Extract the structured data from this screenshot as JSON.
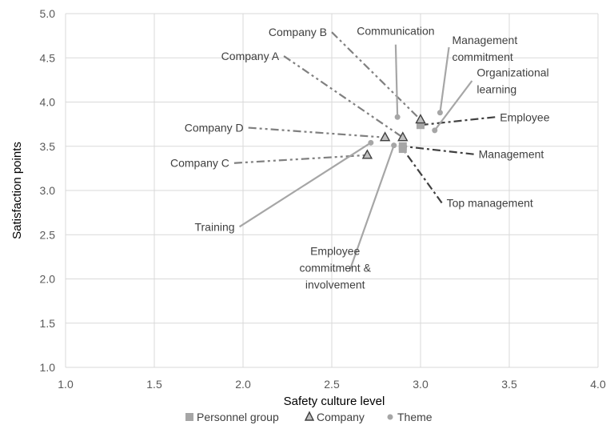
{
  "chart_data": {
    "type": "scatter",
    "title": "",
    "xlabel": "Safety culture level",
    "ylabel": "Satisfaction points",
    "xlim": [
      1.0,
      4.0
    ],
    "ylim": [
      1.0,
      5.0
    ],
    "xticks": [
      "1.0",
      "1.5",
      "2.0",
      "2.5",
      "3.0",
      "3.5",
      "4.0"
    ],
    "yticks": [
      "1.0",
      "1.5",
      "2.0",
      "2.5",
      "3.0",
      "3.5",
      "4.0",
      "4.5",
      "5.0"
    ],
    "grid": true,
    "legend_position": "bottom",
    "series": [
      {
        "name": "Personnel group",
        "marker": "square",
        "color": "#a6a6a6",
        "points": [
          {
            "label": "Employee",
            "x": 3.0,
            "y": 3.74,
            "label_x": 3.42,
            "label_y": 3.83,
            "line": "dash-dot",
            "line_color": "#404040",
            "label_anchor": "start"
          },
          {
            "label": "Management",
            "x": 2.9,
            "y": 3.5,
            "label_x": 3.3,
            "label_y": 3.41,
            "line": "dash-dot",
            "line_color": "#404040",
            "label_anchor": "start"
          },
          {
            "label": "Top management",
            "x": 2.9,
            "y": 3.47,
            "label_x": 3.12,
            "label_y": 2.86,
            "line": "dash-dot",
            "line_color": "#404040",
            "label_anchor": "start"
          }
        ]
      },
      {
        "name": "Company",
        "marker": "triangle",
        "color": "#404040",
        "points": [
          {
            "label": "Company A",
            "x": 2.9,
            "y": 3.6,
            "label_x": 2.23,
            "label_y": 4.52,
            "line": "dash-dot-dot",
            "line_color": "#808080",
            "label_anchor": "end"
          },
          {
            "label": "Company B",
            "x": 3.0,
            "y": 3.8,
            "label_x": 2.5,
            "label_y": 4.79,
            "line": "dash-dot-dot",
            "line_color": "#808080",
            "label_anchor": "end"
          },
          {
            "label": "Company C",
            "x": 2.7,
            "y": 3.4,
            "label_x": 1.95,
            "label_y": 3.31,
            "line": "dash-dot-dot",
            "line_color": "#808080",
            "label_anchor": "end"
          },
          {
            "label": "Company D",
            "x": 2.8,
            "y": 3.6,
            "label_x": 2.03,
            "label_y": 3.71,
            "line": "dash-dot-dot",
            "line_color": "#808080",
            "label_anchor": "end"
          }
        ]
      },
      {
        "name": "Theme",
        "marker": "circle",
        "color": "#a6a6a6",
        "points": [
          {
            "label": "Communication",
            "x": 2.87,
            "y": 3.83,
            "label_x": 2.86,
            "label_y": 4.65,
            "line": "solid",
            "line_color": "#a6a6a6",
            "label_anchor": "middle"
          },
          {
            "label": "Management commitment",
            "label_lines": [
              "Management",
              "commitment"
            ],
            "x": 3.11,
            "y": 3.88,
            "label_x": 3.16,
            "label_y": 4.62,
            "line": "solid",
            "line_color": "#a6a6a6",
            "label_anchor": "start"
          },
          {
            "label": "Organizational learning",
            "label_lines": [
              "Organizational",
              "learning"
            ],
            "x": 3.08,
            "y": 3.68,
            "label_x": 3.29,
            "label_y": 4.24,
            "line": "solid",
            "line_color": "#a6a6a6",
            "label_anchor": "start"
          },
          {
            "label": "Training",
            "x": 2.72,
            "y": 3.54,
            "label_x": 1.98,
            "label_y": 2.59,
            "line": "solid",
            "line_color": "#a6a6a6",
            "label_anchor": "end"
          },
          {
            "label": "Employee commitment & involvement",
            "label_lines": [
              "Employee",
              "commitment &",
              "involvement"
            ],
            "x": 2.85,
            "y": 3.51,
            "label_x": 2.6,
            "label_y": 2.09,
            "line": "solid",
            "line_color": "#a6a6a6",
            "label_anchor": "end"
          }
        ]
      }
    ]
  }
}
